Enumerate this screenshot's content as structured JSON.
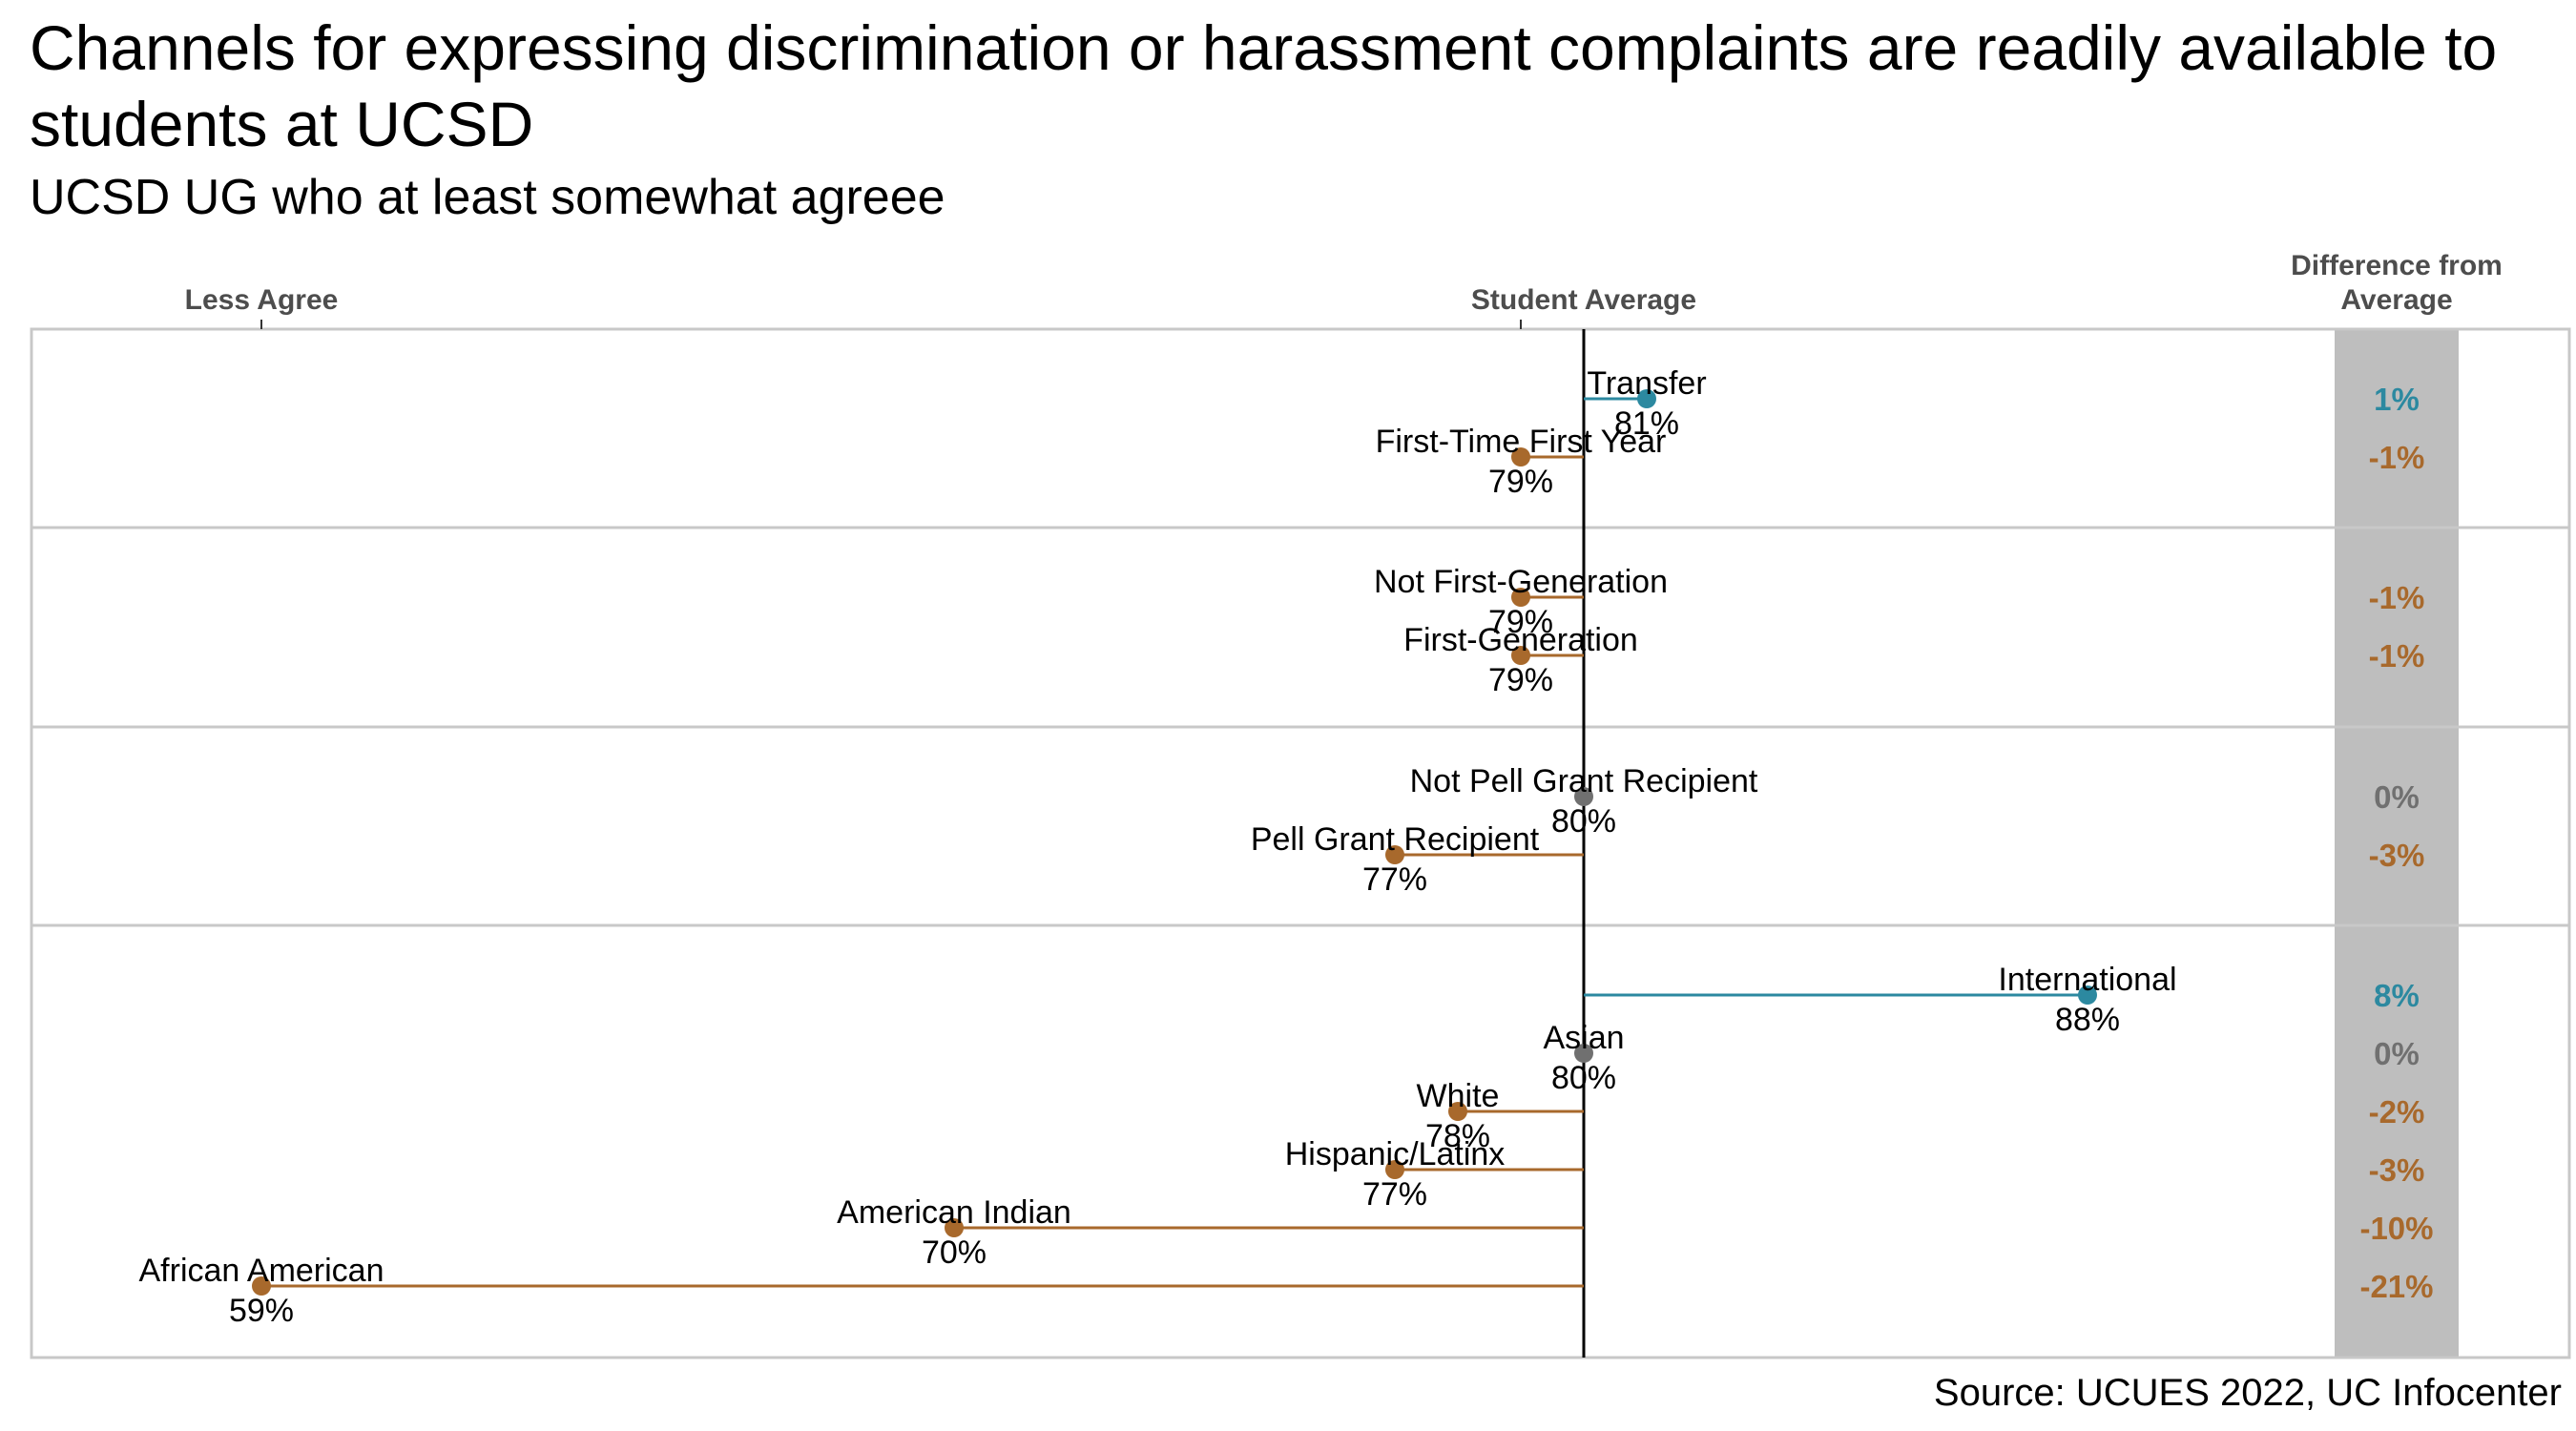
{
  "title": "Channels for expressing discrimination or harassment complaints are readily available to students at UCSD",
  "subtitle": "UCSD UG who at least somewhat agreee",
  "source": "Source: UCUES 2022, UC Infocenter",
  "colors": {
    "above": "#2c89a0",
    "below": "#a8692c",
    "equal": "#707070",
    "panel_border": "#c8c8c8",
    "diff_column": "#bebebe",
    "average_line": "#000000"
  },
  "chart_data": {
    "type": "dot-difference",
    "average": 80,
    "xlim": [
      58,
      92
    ],
    "axis_labels": {
      "left": "Less Agree",
      "center": "Student Average",
      "right": "Difference from Average"
    },
    "groups": [
      {
        "items": [
          {
            "label": "Transfer",
            "value": 81,
            "value_label": "81%",
            "diff": 1,
            "diff_label": "1%"
          },
          {
            "label": "First-Time First Year",
            "value": 79,
            "value_label": "79%",
            "diff": -1,
            "diff_label": "-1%"
          }
        ]
      },
      {
        "items": [
          {
            "label": "Not First-Generation",
            "value": 79,
            "value_label": "79%",
            "diff": -1,
            "diff_label": "-1%"
          },
          {
            "label": "First-Generation",
            "value": 79,
            "value_label": "79%",
            "diff": -1,
            "diff_label": "-1%"
          }
        ]
      },
      {
        "items": [
          {
            "label": "Not Pell Grant Recipient",
            "value": 80,
            "value_label": "80%",
            "diff": 0,
            "diff_label": "0%"
          },
          {
            "label": "Pell Grant Recipient",
            "value": 77,
            "value_label": "77%",
            "diff": -3,
            "diff_label": "-3%"
          }
        ]
      },
      {
        "items": [
          {
            "label": "International",
            "value": 88,
            "value_label": "88%",
            "diff": 8,
            "diff_label": "8%"
          },
          {
            "label": "Asian",
            "value": 80,
            "value_label": "80%",
            "diff": 0,
            "diff_label": "0%"
          },
          {
            "label": "White",
            "value": 78,
            "value_label": "78%",
            "diff": -2,
            "diff_label": "-2%"
          },
          {
            "label": "Hispanic/Latinx",
            "value": 77,
            "value_label": "77%",
            "diff": -3,
            "diff_label": "-3%"
          },
          {
            "label": "American Indian",
            "value": 70,
            "value_label": "70%",
            "diff": -10,
            "diff_label": "-10%"
          },
          {
            "label": "African American",
            "value": 59,
            "value_label": "59%",
            "diff": -21,
            "diff_label": "-21%"
          }
        ]
      }
    ]
  }
}
